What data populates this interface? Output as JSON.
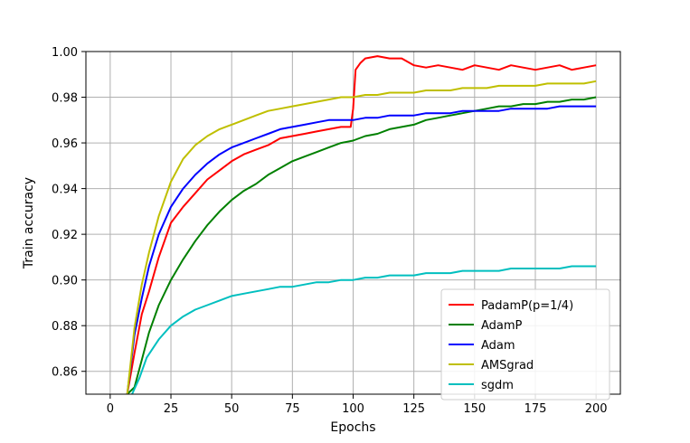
{
  "chart_data": {
    "type": "line",
    "title": "",
    "xlabel": "Epochs",
    "ylabel": "Train accuracy",
    "xlim": [
      -10,
      210
    ],
    "ylim": [
      0.85,
      1.0
    ],
    "x_ticks": [
      0,
      25,
      50,
      75,
      100,
      125,
      150,
      175,
      200
    ],
    "y_ticks": [
      0.86,
      0.88,
      0.9,
      0.92,
      0.94,
      0.96,
      0.98,
      1.0
    ],
    "x_tick_labels": [
      "0",
      "25",
      "50",
      "75",
      "100",
      "125",
      "150",
      "175",
      "200"
    ],
    "y_tick_labels": [
      "0.86",
      "0.88",
      "0.90",
      "0.92",
      "0.94",
      "0.96",
      "0.98",
      "1.00"
    ],
    "grid": true,
    "legend_position": "bottom-right",
    "series": [
      {
        "name": "PadamP(p=1/4)",
        "color": "#ff0000",
        "points": [
          [
            7,
            0.85
          ],
          [
            10,
            0.868
          ],
          [
            13,
            0.885
          ],
          [
            16,
            0.895
          ],
          [
            20,
            0.91
          ],
          [
            25,
            0.925
          ],
          [
            30,
            0.932
          ],
          [
            35,
            0.938
          ],
          [
            40,
            0.944
          ],
          [
            45,
            0.948
          ],
          [
            50,
            0.952
          ],
          [
            55,
            0.955
          ],
          [
            60,
            0.957
          ],
          [
            65,
            0.959
          ],
          [
            70,
            0.962
          ],
          [
            75,
            0.963
          ],
          [
            80,
            0.964
          ],
          [
            85,
            0.965
          ],
          [
            90,
            0.966
          ],
          [
            95,
            0.967
          ],
          [
            99,
            0.967
          ],
          [
            100,
            0.975
          ],
          [
            101,
            0.992
          ],
          [
            103,
            0.995
          ],
          [
            105,
            0.997
          ],
          [
            110,
            0.998
          ],
          [
            115,
            0.997
          ],
          [
            120,
            0.997
          ],
          [
            125,
            0.994
          ],
          [
            130,
            0.993
          ],
          [
            135,
            0.994
          ],
          [
            140,
            0.993
          ],
          [
            145,
            0.992
          ],
          [
            150,
            0.994
          ],
          [
            155,
            0.993
          ],
          [
            160,
            0.992
          ],
          [
            165,
            0.994
          ],
          [
            170,
            0.993
          ],
          [
            175,
            0.992
          ],
          [
            180,
            0.993
          ],
          [
            185,
            0.994
          ],
          [
            190,
            0.992
          ],
          [
            195,
            0.993
          ],
          [
            200,
            0.994
          ]
        ]
      },
      {
        "name": "AdamP",
        "color": "#008000",
        "points": [
          [
            7,
            0.85
          ],
          [
            10,
            0.853
          ],
          [
            13,
            0.865
          ],
          [
            16,
            0.877
          ],
          [
            20,
            0.889
          ],
          [
            25,
            0.9
          ],
          [
            30,
            0.909
          ],
          [
            35,
            0.917
          ],
          [
            40,
            0.924
          ],
          [
            45,
            0.93
          ],
          [
            50,
            0.935
          ],
          [
            55,
            0.939
          ],
          [
            60,
            0.942
          ],
          [
            65,
            0.946
          ],
          [
            70,
            0.949
          ],
          [
            75,
            0.952
          ],
          [
            80,
            0.954
          ],
          [
            85,
            0.956
          ],
          [
            90,
            0.958
          ],
          [
            95,
            0.96
          ],
          [
            100,
            0.961
          ],
          [
            105,
            0.963
          ],
          [
            110,
            0.964
          ],
          [
            115,
            0.966
          ],
          [
            120,
            0.967
          ],
          [
            125,
            0.968
          ],
          [
            130,
            0.97
          ],
          [
            135,
            0.971
          ],
          [
            140,
            0.972
          ],
          [
            145,
            0.973
          ],
          [
            150,
            0.974
          ],
          [
            155,
            0.975
          ],
          [
            160,
            0.976
          ],
          [
            165,
            0.976
          ],
          [
            170,
            0.977
          ],
          [
            175,
            0.977
          ],
          [
            180,
            0.978
          ],
          [
            185,
            0.978
          ],
          [
            190,
            0.979
          ],
          [
            195,
            0.979
          ],
          [
            200,
            0.98
          ]
        ]
      },
      {
        "name": "Adam",
        "color": "#0000ff",
        "points": [
          [
            7,
            0.85
          ],
          [
            10,
            0.876
          ],
          [
            13,
            0.892
          ],
          [
            16,
            0.906
          ],
          [
            20,
            0.92
          ],
          [
            25,
            0.932
          ],
          [
            30,
            0.94
          ],
          [
            35,
            0.946
          ],
          [
            40,
            0.951
          ],
          [
            45,
            0.955
          ],
          [
            50,
            0.958
          ],
          [
            55,
            0.96
          ],
          [
            60,
            0.962
          ],
          [
            65,
            0.964
          ],
          [
            70,
            0.966
          ],
          [
            75,
            0.967
          ],
          [
            80,
            0.968
          ],
          [
            85,
            0.969
          ],
          [
            90,
            0.97
          ],
          [
            95,
            0.97
          ],
          [
            100,
            0.97
          ],
          [
            105,
            0.971
          ],
          [
            110,
            0.971
          ],
          [
            115,
            0.972
          ],
          [
            120,
            0.972
          ],
          [
            125,
            0.972
          ],
          [
            130,
            0.973
          ],
          [
            135,
            0.973
          ],
          [
            140,
            0.973
          ],
          [
            145,
            0.974
          ],
          [
            150,
            0.974
          ],
          [
            155,
            0.974
          ],
          [
            160,
            0.974
          ],
          [
            165,
            0.975
          ],
          [
            170,
            0.975
          ],
          [
            175,
            0.975
          ],
          [
            180,
            0.975
          ],
          [
            185,
            0.976
          ],
          [
            190,
            0.976
          ],
          [
            195,
            0.976
          ],
          [
            200,
            0.976
          ]
        ]
      },
      {
        "name": "AMSgrad",
        "color": "#bfbf00",
        "points": [
          [
            7,
            0.85
          ],
          [
            10,
            0.879
          ],
          [
            13,
            0.898
          ],
          [
            16,
            0.912
          ],
          [
            20,
            0.928
          ],
          [
            25,
            0.943
          ],
          [
            30,
            0.953
          ],
          [
            35,
            0.959
          ],
          [
            40,
            0.963
          ],
          [
            45,
            0.966
          ],
          [
            50,
            0.968
          ],
          [
            55,
            0.97
          ],
          [
            60,
            0.972
          ],
          [
            65,
            0.974
          ],
          [
            70,
            0.975
          ],
          [
            75,
            0.976
          ],
          [
            80,
            0.977
          ],
          [
            85,
            0.978
          ],
          [
            90,
            0.979
          ],
          [
            95,
            0.98
          ],
          [
            100,
            0.98
          ],
          [
            105,
            0.981
          ],
          [
            110,
            0.981
          ],
          [
            115,
            0.982
          ],
          [
            120,
            0.982
          ],
          [
            125,
            0.982
          ],
          [
            130,
            0.983
          ],
          [
            135,
            0.983
          ],
          [
            140,
            0.983
          ],
          [
            145,
            0.984
          ],
          [
            150,
            0.984
          ],
          [
            155,
            0.984
          ],
          [
            160,
            0.985
          ],
          [
            165,
            0.985
          ],
          [
            170,
            0.985
          ],
          [
            175,
            0.985
          ],
          [
            180,
            0.986
          ],
          [
            185,
            0.986
          ],
          [
            190,
            0.986
          ],
          [
            195,
            0.986
          ],
          [
            200,
            0.987
          ]
        ]
      },
      {
        "name": "sgdm",
        "color": "#00bfbf",
        "points": [
          [
            9,
            0.85
          ],
          [
            12,
            0.857
          ],
          [
            15,
            0.866
          ],
          [
            20,
            0.874
          ],
          [
            25,
            0.88
          ],
          [
            30,
            0.884
          ],
          [
            35,
            0.887
          ],
          [
            40,
            0.889
          ],
          [
            45,
            0.891
          ],
          [
            50,
            0.893
          ],
          [
            55,
            0.894
          ],
          [
            60,
            0.895
          ],
          [
            65,
            0.896
          ],
          [
            70,
            0.897
          ],
          [
            75,
            0.897
          ],
          [
            80,
            0.898
          ],
          [
            85,
            0.899
          ],
          [
            90,
            0.899
          ],
          [
            95,
            0.9
          ],
          [
            100,
            0.9
          ],
          [
            105,
            0.901
          ],
          [
            110,
            0.901
          ],
          [
            115,
            0.902
          ],
          [
            120,
            0.902
          ],
          [
            125,
            0.902
          ],
          [
            130,
            0.903
          ],
          [
            135,
            0.903
          ],
          [
            140,
            0.903
          ],
          [
            145,
            0.904
          ],
          [
            150,
            0.904
          ],
          [
            155,
            0.904
          ],
          [
            160,
            0.904
          ],
          [
            165,
            0.905
          ],
          [
            170,
            0.905
          ],
          [
            175,
            0.905
          ],
          [
            180,
            0.905
          ],
          [
            185,
            0.905
          ],
          [
            190,
            0.906
          ],
          [
            195,
            0.906
          ],
          [
            200,
            0.906
          ]
        ]
      }
    ]
  }
}
